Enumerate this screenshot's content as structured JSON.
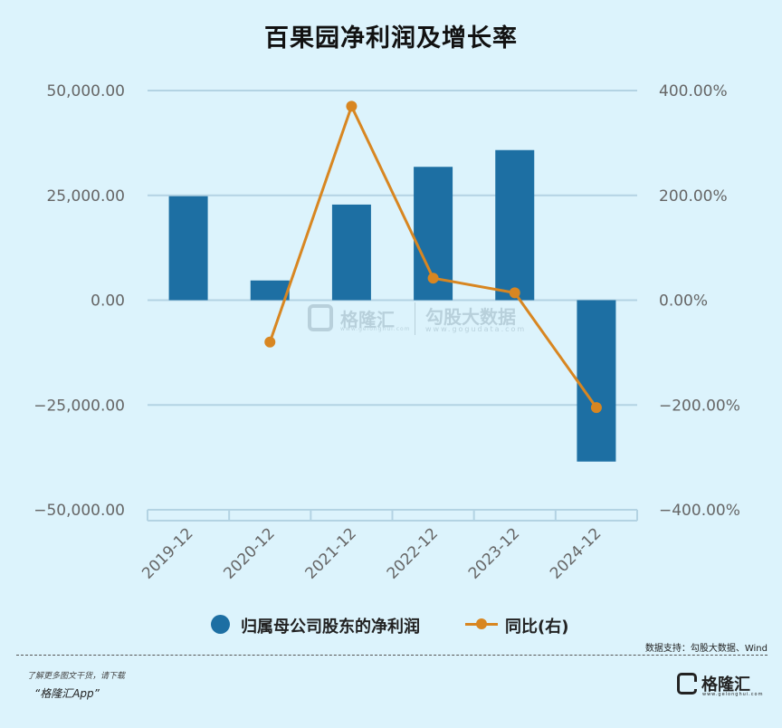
{
  "title": "百果园净利润及增长率",
  "legend": {
    "bar_label": "归属母公司股东的净利润",
    "line_label": "同比(右)"
  },
  "source": "数据支持：勾股大数据、Wind",
  "watermark": {
    "brand_left": "格隆汇",
    "brand_left_url": "www.gelonghui.com",
    "brand_right": "勾股大数据",
    "brand_right_url": "www.gogudata.com"
  },
  "footer": {
    "note": "了解更多图文干货，请下载",
    "app": "“格隆汇App”",
    "logo_name": "格隆汇",
    "logo_url": "www.gelonghui.com"
  },
  "colors": {
    "bar": "#1d6fa3",
    "line": "#d88621",
    "grid": "#b3d3e3",
    "axis_text": "#666666"
  },
  "chart_data": {
    "type": "bar",
    "categories": [
      "2019-12",
      "2020-12",
      "2021-12",
      "2022-12",
      "2023-12",
      "2024-12"
    ],
    "series": [
      {
        "name": "归属母公司股东的净利润",
        "type": "bar",
        "axis": "left",
        "values": [
          24800,
          4700,
          22800,
          31800,
          35800,
          -38500
        ]
      },
      {
        "name": "同比(右)",
        "type": "line",
        "axis": "right",
        "values": [
          null,
          -80.0,
          370.0,
          42.0,
          14.0,
          -205.0
        ]
      }
    ],
    "ylim_left": [
      -50000,
      50000
    ],
    "ylim_right": [
      -400,
      400
    ],
    "yticks_left": [
      "50,000.00",
      "25,000.00",
      "0.00",
      "−25,000.00",
      "−50,000.00"
    ],
    "yticks_right": [
      "400.00%",
      "200.00%",
      "0.00%",
      "−200.00%",
      "−400.00%"
    ],
    "grid": true,
    "legend_position": "bottom"
  }
}
